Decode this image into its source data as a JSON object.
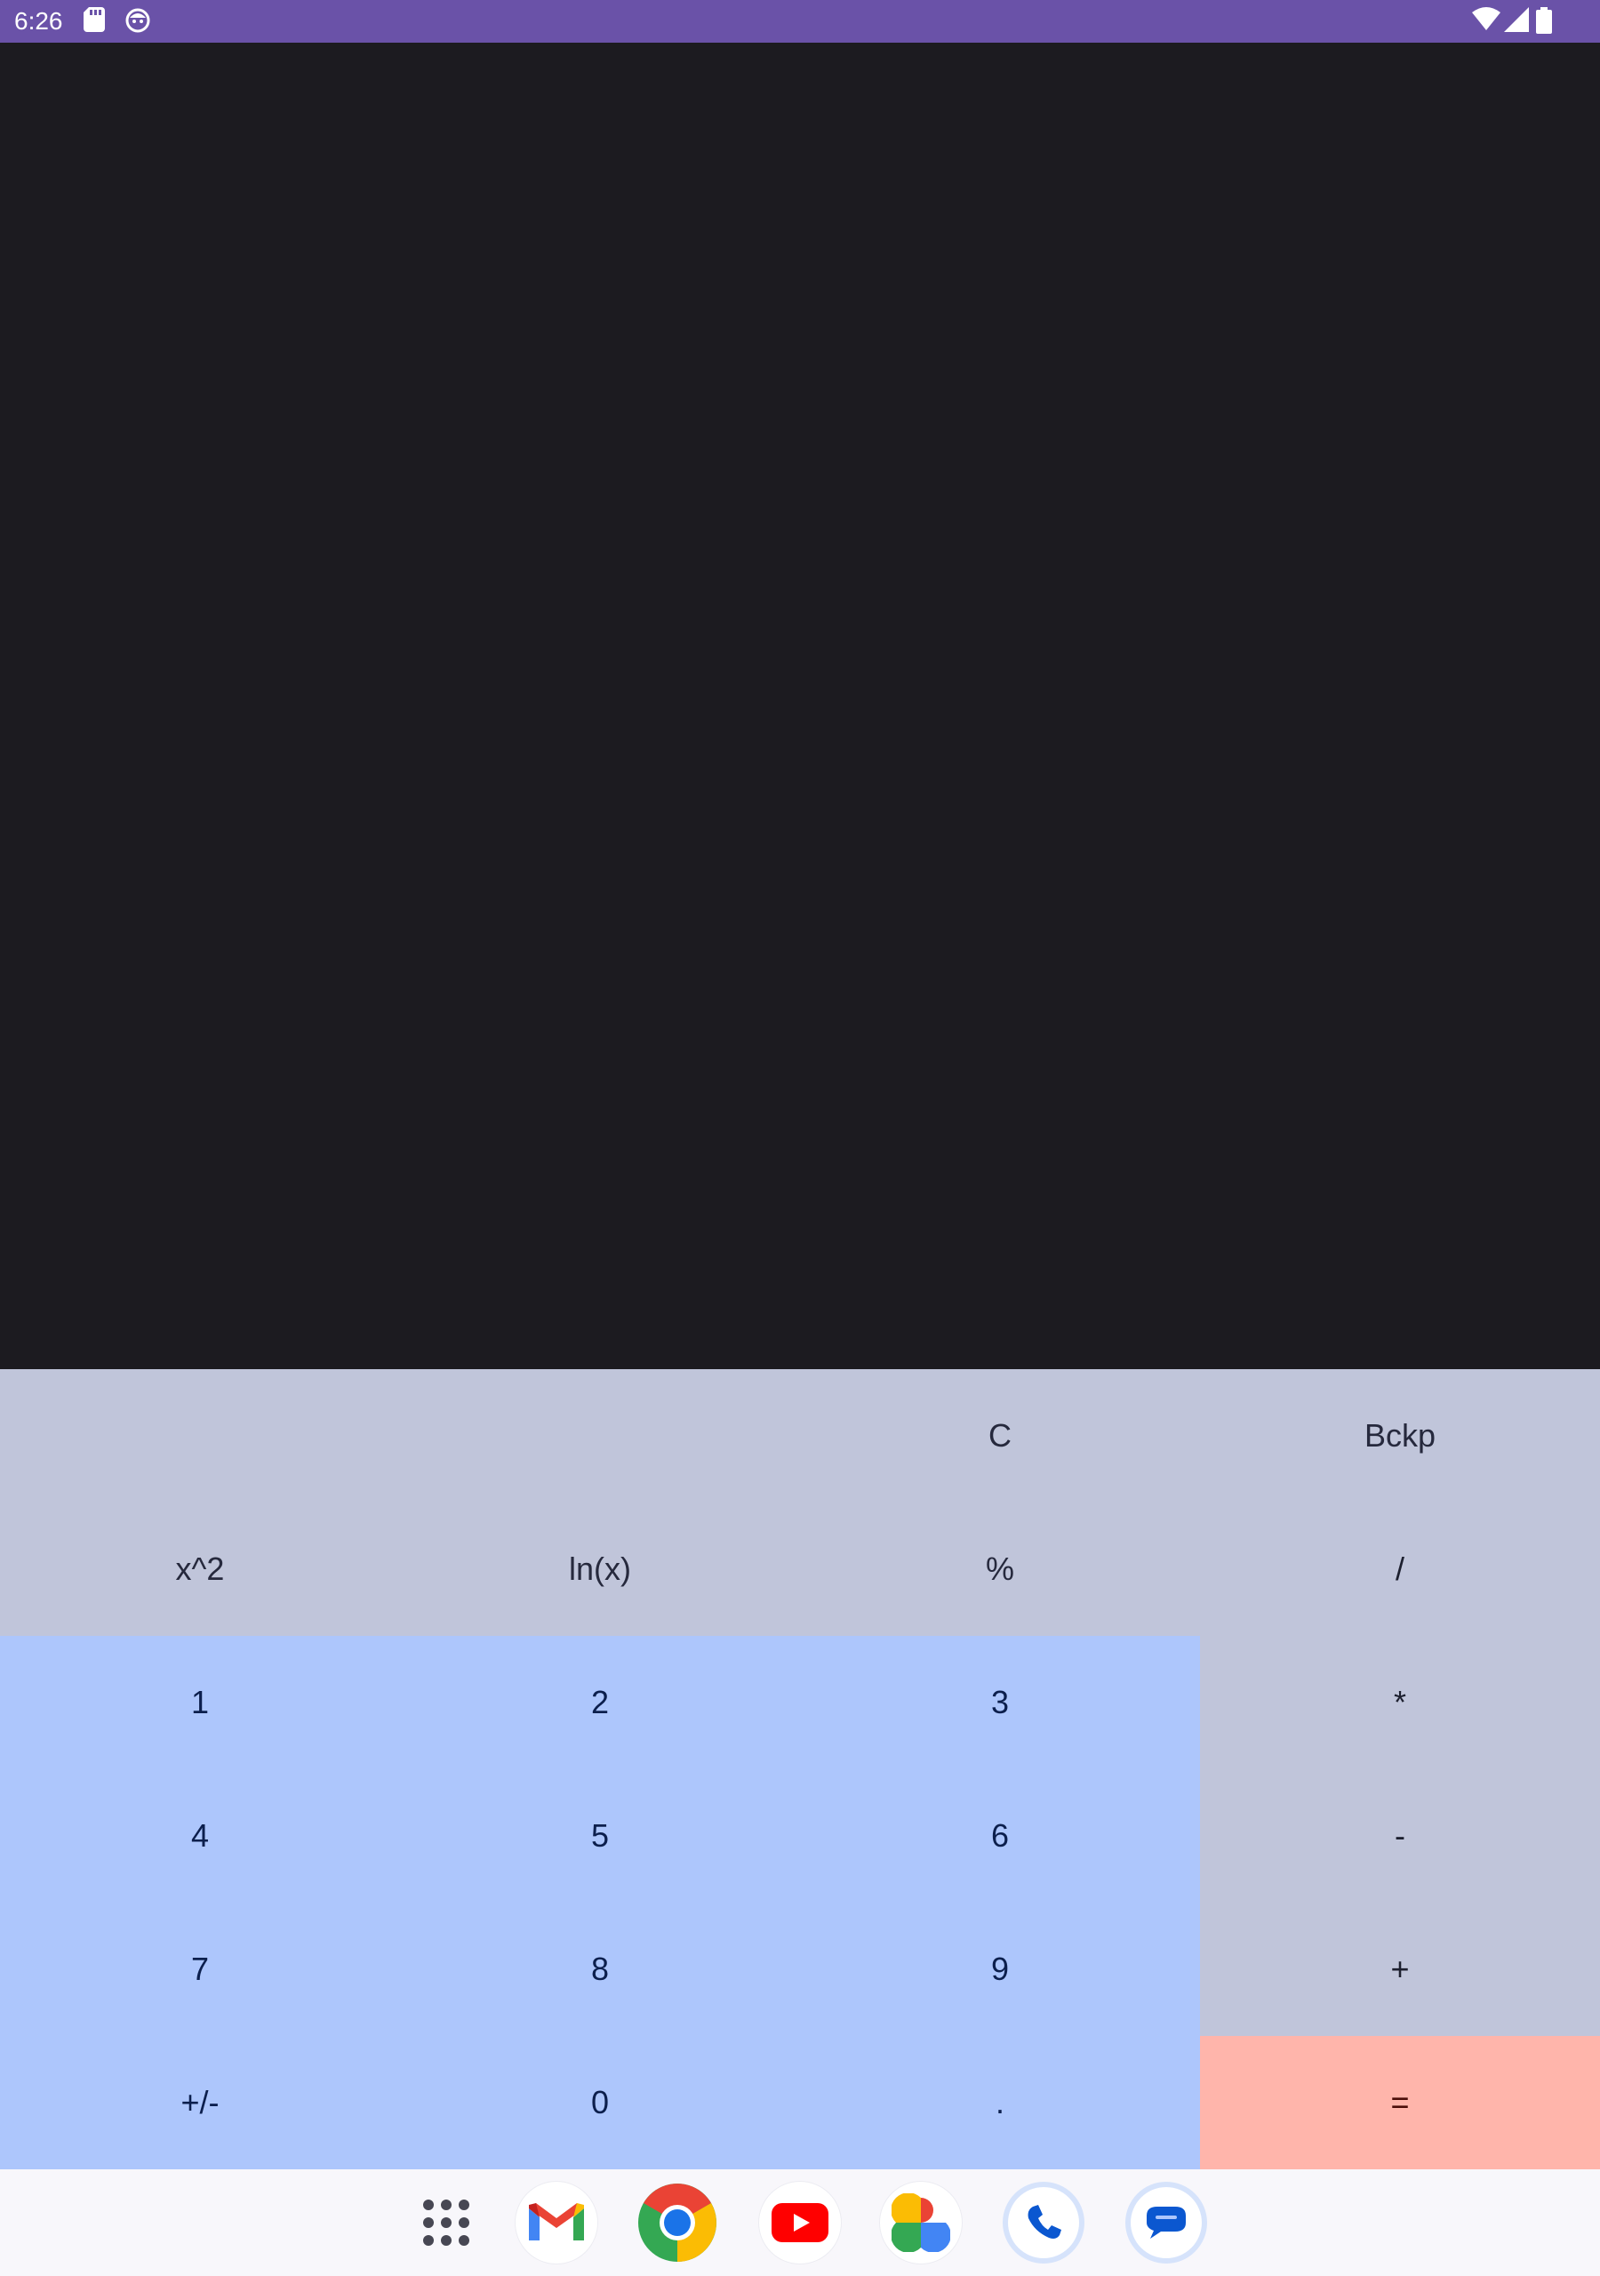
{
  "status_bar": {
    "time": "6:26",
    "icons": [
      "sd-card-icon",
      "face-icon",
      "wifi-icon",
      "signal-icon",
      "battery-icon"
    ],
    "color": "#6a52a8"
  },
  "display": {
    "value": ""
  },
  "keypad": {
    "row1": [
      "",
      "",
      "C",
      "Bckp"
    ],
    "row2": [
      "x^2",
      "ln(x)",
      "%",
      "/"
    ],
    "row3": [
      "1",
      "2",
      "3",
      "*"
    ],
    "row4": [
      "4",
      "5",
      "6",
      "-"
    ],
    "row5": [
      "7",
      "8",
      "9",
      "+"
    ],
    "row6": [
      "+/-",
      "0",
      ".",
      "="
    ],
    "colors": {
      "function_keys": "#c0c5da",
      "number_keys": "#adc6fc",
      "equals_key": "#ffb5ab"
    }
  },
  "dock": {
    "apps": [
      "app-drawer-icon",
      "gmail-icon",
      "chrome-icon",
      "youtube-icon",
      "photos-icon",
      "phone-icon",
      "messages-icon"
    ]
  }
}
